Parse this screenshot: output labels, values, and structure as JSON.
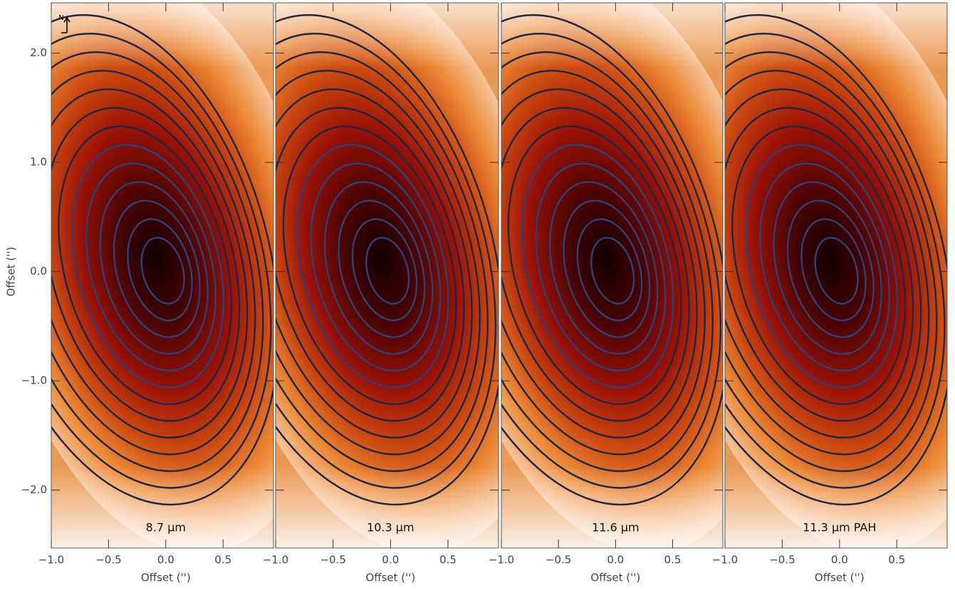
{
  "chart_data": [
    {
      "type": "heatmap",
      "title": "8.7 µm",
      "annotation": "N",
      "xlabel": "Offset ('')",
      "ylabel": "Offset ('')",
      "xlim": [
        -1.0,
        0.94
      ],
      "ylim": [
        -2.53,
        2.46
      ],
      "xticks": [
        {
          "value": -1.0,
          "label": "−1.0"
        },
        {
          "value": -0.5,
          "label": "−0.5"
        },
        {
          "value": 0,
          "label": "0.0"
        },
        0.5
      ],
      "yticks": [
        {
          "value": -2.0,
          "label": "−2.0"
        },
        {
          "value": -1.0,
          "label": "−1.0"
        },
        {
          "value": 0,
          "label": "0.0"
        },
        {
          "value": 1.0,
          "label": "1.0"
        },
        {
          "value": 2.0,
          "label": "2.0"
        }
      ]
    },
    {
      "type": "heatmap",
      "title": "10.3 µm",
      "xlabel": "Offset ('')",
      "xlim": [
        -1.0,
        0.94
      ],
      "ylim": [
        -2.53,
        2.46
      ],
      "xticks": [
        {
          "value": -1.0,
          "label": "−1.0"
        },
        {
          "value": -0.5,
          "label": "−0.5"
        },
        {
          "value": 0,
          "label": "0.0"
        },
        0.5
      ]
    },
    {
      "type": "heatmap",
      "title": "11.6 µm",
      "xlabel": "Offset ('')",
      "xlim": [
        -1.0,
        0.94
      ],
      "ylim": [
        -2.53,
        2.46
      ],
      "xticks": [
        {
          "value": -1.0,
          "label": "−1.0"
        },
        {
          "value": -0.5,
          "label": "−0.5"
        },
        {
          "value": 0,
          "label": "0.0"
        },
        0.5
      ]
    },
    {
      "type": "heatmap",
      "title": "11.3 µm PAH",
      "xlabel": "Offset ('')",
      "xlim": [
        -1.0,
        0.94
      ],
      "ylim": [
        -2.53,
        2.46
      ],
      "xticks": [
        {
          "value": -1.0,
          "label": "−1.0"
        },
        {
          "value": -0.5,
          "label": "−0.5"
        },
        {
          "value": 0,
          "label": "0.0"
        },
        0.5
      ]
    }
  ]
}
